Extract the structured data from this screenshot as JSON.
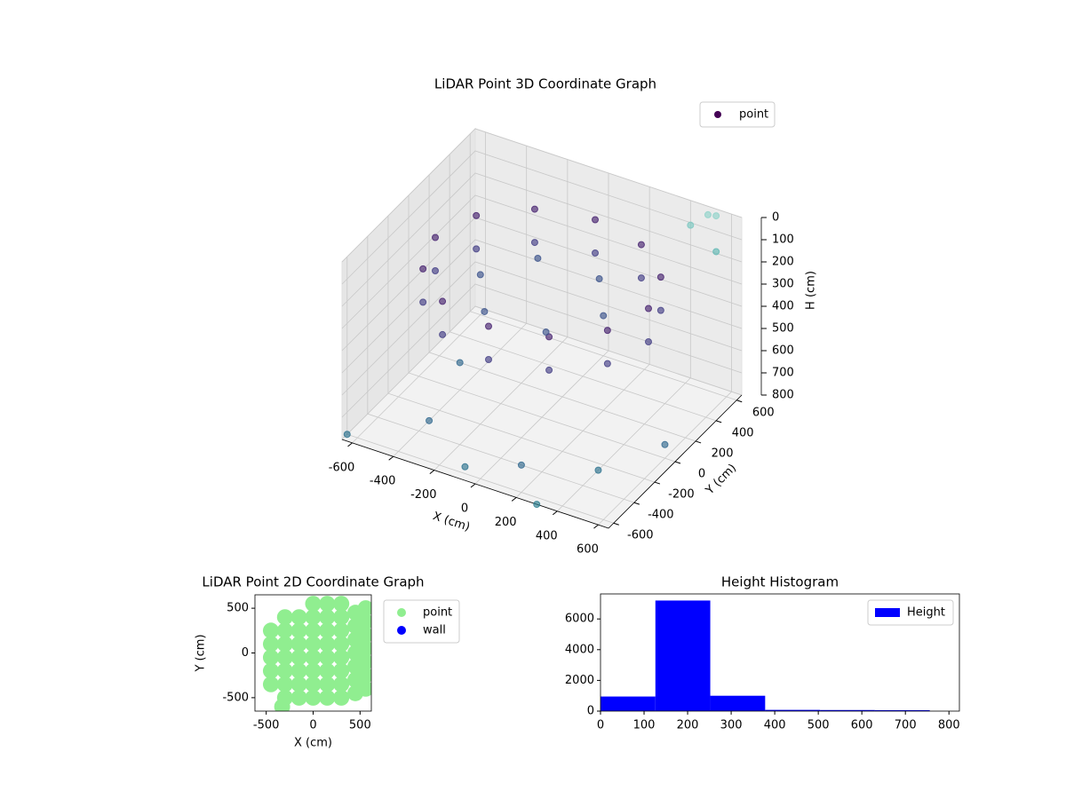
{
  "chart_data": [
    {
      "type": "scatter3d",
      "title": "LiDAR Point 3D Coordinate Graph",
      "xlabel": "X (cm)",
      "ylabel": "Y (cm)",
      "zlabel": "H (cm)",
      "xlim": [
        -650,
        650
      ],
      "ylim": [
        -650,
        650
      ],
      "zlim": [
        800,
        0
      ],
      "xticks": [
        -600,
        -400,
        -200,
        0,
        200,
        400,
        600
      ],
      "yticks": [
        -600,
        -400,
        -200,
        0,
        200,
        400,
        600
      ],
      "zticks": [
        0,
        100,
        200,
        300,
        400,
        500,
        600,
        700,
        800
      ],
      "grid": true,
      "legend": "upper right",
      "series": [
        {
          "name": "point",
          "color": "#440154",
          "x": [
            520,
            450,
            260,
            0,
            -260,
            -450,
            -520,
            -450,
            -260,
            0,
            260,
            450,
            520,
            450,
            260,
            0,
            -260,
            -450,
            -520,
            -450,
            -260,
            0,
            260,
            450,
            300,
            150,
            -150,
            -300,
            -150,
            150,
            -650,
            -400,
            -100,
            100,
            400,
            550,
            300,
            -500,
            550,
            450,
            600,
            500
          ],
          "y": [
            0,
            260,
            450,
            520,
            450,
            260,
            0,
            -260,
            -450,
            -520,
            -450,
            -260,
            0,
            260,
            450,
            520,
            450,
            260,
            0,
            -260,
            -450,
            -520,
            -450,
            -260,
            0,
            260,
            260,
            0,
            -260,
            -260,
            -600,
            -300,
            -550,
            -400,
            -250,
            100,
            -650,
            200,
            600,
            550,
            500,
            620
          ],
          "h": [
            150,
            150,
            150,
            150,
            150,
            150,
            150,
            150,
            150,
            150,
            150,
            150,
            300,
            300,
            300,
            300,
            300,
            300,
            300,
            300,
            300,
            300,
            300,
            300,
            250,
            250,
            250,
            250,
            250,
            250,
            800,
            800,
            800,
            800,
            800,
            800,
            800,
            800,
            0,
            50,
            100,
            20
          ],
          "colors": [
            "#46226f",
            "#46226f",
            "#46226f",
            "#46226f",
            "#46226f",
            "#46226f",
            "#46226f",
            "#46226f",
            "#46226f",
            "#46226f",
            "#46226f",
            "#46226f",
            "#433e85",
            "#433e85",
            "#433e85",
            "#433e85",
            "#433e85",
            "#433e85",
            "#433e85",
            "#433e85",
            "#433e85",
            "#433e85",
            "#433e85",
            "#433e85",
            "#3b528b",
            "#3b528b",
            "#3b528b",
            "#3b528b",
            "#3b528b",
            "#3b528b",
            "#2c728e",
            "#31688e",
            "#2c728e",
            "#31688e",
            "#2c728e",
            "#31688e",
            "#287c8e",
            "#31688e",
            "#8fd3c9",
            "#7ac7c0",
            "#5fb8b3",
            "#8fd3c9"
          ]
        }
      ]
    },
    {
      "type": "scatter",
      "title": "LiDAR Point 2D Coordinate Graph",
      "xlabel": "X (cm)",
      "ylabel": "Y (cm)",
      "xlim": [
        -620,
        620
      ],
      "ylim": [
        -650,
        650
      ],
      "xticks": [
        -500,
        0,
        500
      ],
      "yticks": [
        -500,
        0,
        500
      ],
      "legend": "outside",
      "series": [
        {
          "name": "point",
          "color": "#90ee90",
          "x": [
            -450,
            -450,
            -450,
            -450,
            -450,
            -300,
            -300,
            -300,
            -300,
            -300,
            -300,
            -300,
            -150,
            -150,
            -150,
            -150,
            -150,
            -150,
            -150,
            0,
            0,
            0,
            0,
            0,
            0,
            0,
            0,
            150,
            150,
            150,
            150,
            150,
            150,
            150,
            150,
            300,
            300,
            300,
            300,
            300,
            300,
            300,
            300,
            450,
            450,
            450,
            450,
            450,
            450,
            450,
            560,
            560,
            560,
            560,
            560,
            560,
            560,
            -330
          ],
          "y": [
            -350,
            -200,
            -50,
            100,
            250,
            -500,
            -350,
            -200,
            -50,
            100,
            250,
            400,
            -500,
            -350,
            -200,
            -50,
            100,
            250,
            400,
            -500,
            -350,
            -200,
            -50,
            100,
            250,
            400,
            550,
            -500,
            -350,
            -200,
            -50,
            100,
            250,
            400,
            550,
            -500,
            -350,
            -200,
            -50,
            100,
            250,
            400,
            550,
            -450,
            -300,
            -150,
            0,
            150,
            300,
            450,
            -400,
            -250,
            -100,
            50,
            200,
            350,
            500,
            -600
          ]
        },
        {
          "name": "wall",
          "color": "#0000ff",
          "x": [],
          "y": []
        }
      ]
    },
    {
      "type": "histogram",
      "title": "Height Histogram",
      "xlim": [
        0,
        824
      ],
      "ylim": [
        0,
        7630
      ],
      "xticks": [
        0,
        100,
        200,
        300,
        400,
        500,
        600,
        700,
        800
      ],
      "yticks": [
        0,
        2000,
        4000,
        6000
      ],
      "legend": "upper right",
      "series": [
        {
          "name": "Height",
          "color": "#0000ff",
          "bins": [
            0,
            126,
            252,
            378,
            504,
            630,
            756
          ],
          "values": [
            950,
            7200,
            1000,
            80,
            70,
            60
          ]
        }
      ]
    }
  ]
}
